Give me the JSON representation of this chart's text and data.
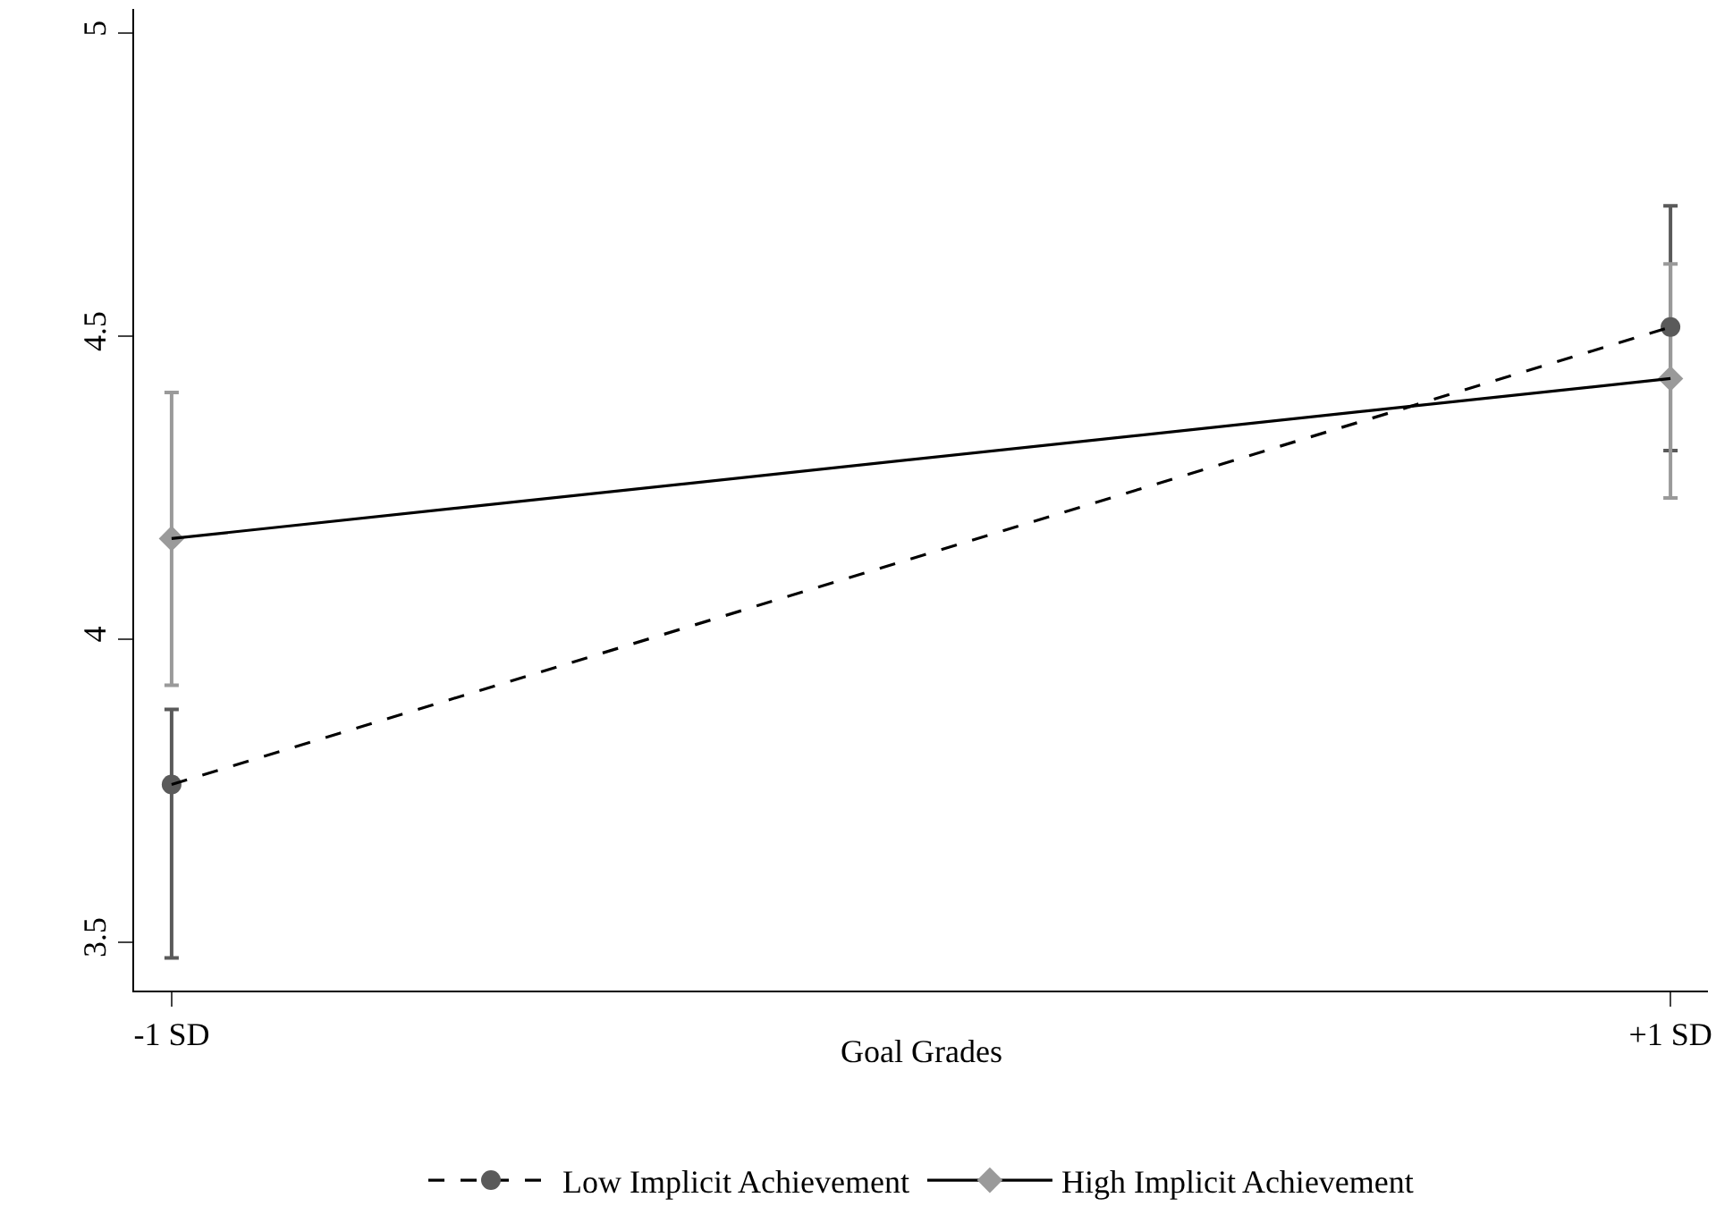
{
  "chart_data": {
    "type": "line",
    "xlabel": "Goal Grades",
    "categories": [
      "-1 SD",
      "+1 SD"
    ],
    "series": [
      {
        "name": "Low Implicit Achievement",
        "color": "#5a5a5a",
        "values": [
          3.76,
          4.515
        ],
        "errors": [
          [
            3.474,
            3.884
          ],
          [
            4.311,
            4.715
          ]
        ],
        "marker": "circle",
        "line_style": "dashed"
      },
      {
        "name": "High Implicit Achievement",
        "color": "#9a9a9a",
        "values": [
          4.166,
          4.43
        ],
        "errors": [
          [
            3.924,
            4.407
          ],
          [
            4.233,
            4.619
          ]
        ],
        "marker": "diamond",
        "line_style": "solid"
      }
    ],
    "ylim": [
      3.42,
      5.04
    ],
    "yticks": [
      3.5,
      4,
      4.5,
      5
    ],
    "grid": false,
    "legend": "bottom"
  }
}
